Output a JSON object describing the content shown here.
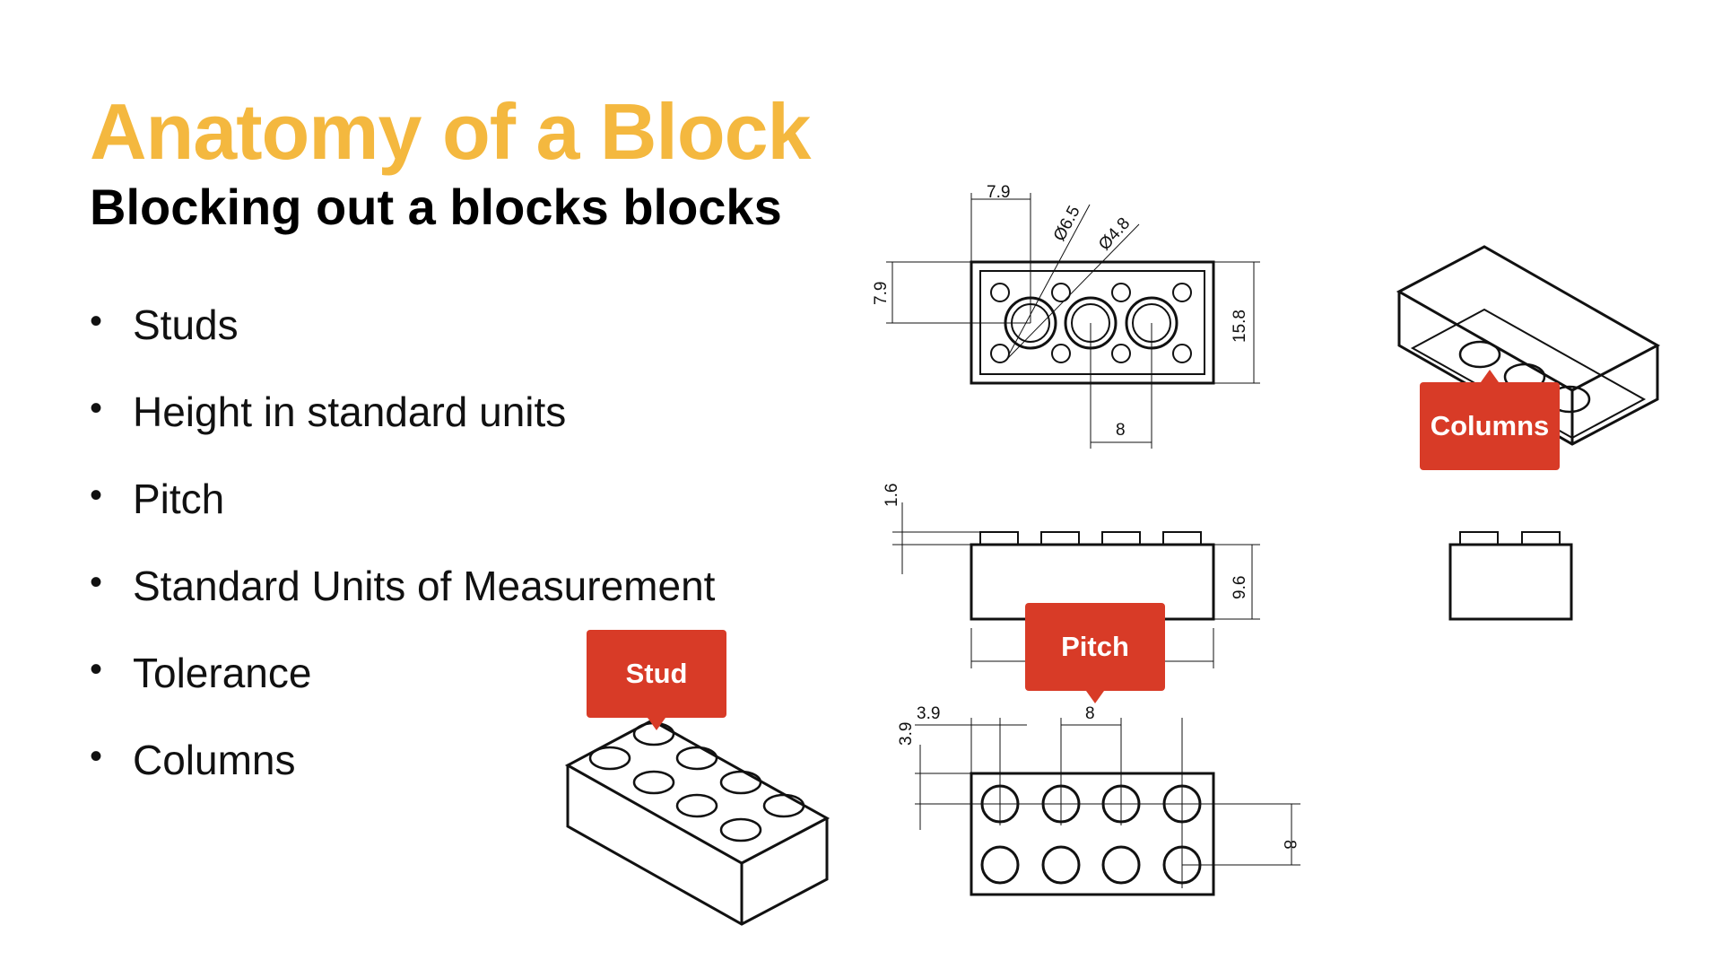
{
  "title": "Anatomy of a Block",
  "subtitle": "Blocking out a blocks blocks",
  "bullets": [
    "Studs",
    "Height in standard units",
    "Pitch",
    "Standard Units of Measurement",
    "Tolerance",
    "Columns"
  ],
  "callouts": {
    "stud": "Stud",
    "pitch": "Pitch",
    "columns": "Columns"
  },
  "dimensions": {
    "top_left_offset": "7.9",
    "top_side_offset": "7.9",
    "stud_diameter": "Ø6.5",
    "hole_diameter": "Ø4.8",
    "depth": "15.8",
    "hole_pitch": "8",
    "stud_height": "1.6",
    "brick_height": "9.6",
    "bottom_offset_x": "3.9",
    "bottom_offset_y": "3.9",
    "bottom_pitch_x": "8",
    "bottom_pitch_y": "8"
  },
  "colors": {
    "title": "#f4b83f",
    "callout": "#d83b27"
  }
}
